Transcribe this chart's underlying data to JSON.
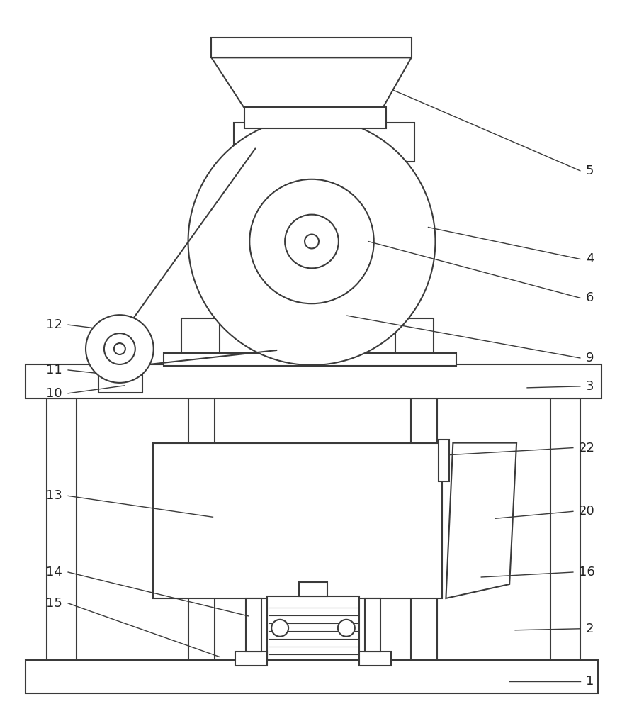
{
  "bg_color": "#ffffff",
  "line_color": "#3a3a3a",
  "line_width": 1.5,
  "fig_width": 8.85,
  "fig_height": 10.0
}
